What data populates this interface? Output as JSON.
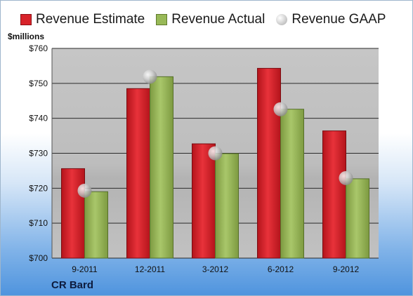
{
  "chart_data": {
    "type": "bar",
    "categories": [
      "9-2011",
      "12-2011",
      "3-2012",
      "6-2012",
      "9-2012"
    ],
    "series": [
      {
        "name": "Revenue Estimate",
        "values": [
          725.6,
          748.5,
          732.7,
          754.3,
          736.4
        ],
        "color": "#d8232a"
      },
      {
        "name": "Revenue Actual",
        "values": [
          719.0,
          751.9,
          729.9,
          742.6,
          722.7
        ],
        "color": "#98b957"
      }
    ],
    "markers": {
      "name": "Revenue GAAP",
      "values": [
        719.3,
        751.9,
        730.0,
        742.6,
        722.9
      ]
    },
    "ylabel": "$millions",
    "ylim": [
      700,
      760
    ],
    "yticks": [
      700,
      710,
      720,
      730,
      740,
      750,
      760
    ],
    "ytick_labels": [
      "$700",
      "$710",
      "$720",
      "$730",
      "$740",
      "$750",
      "$760"
    ],
    "grid": true,
    "legend_position": "top"
  },
  "company": "CR Bard"
}
